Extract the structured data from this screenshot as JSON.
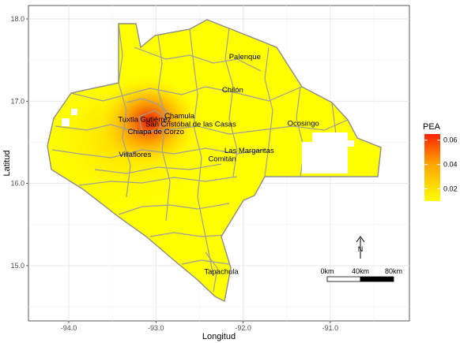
{
  "axes": {
    "xlabel": "Longitud",
    "ylabel": "Latitud",
    "xticks": [
      {
        "value": -94.0,
        "label": "-94.0"
      },
      {
        "value": -93.0,
        "label": "-93.0"
      },
      {
        "value": -92.0,
        "label": "-92.0"
      },
      {
        "value": -91.0,
        "label": "-91.0"
      }
    ],
    "yticks": [
      {
        "value": 15.0,
        "label": "15.0"
      },
      {
        "value": 16.0,
        "label": "16.0"
      },
      {
        "value": 17.0,
        "label": "17.0"
      },
      {
        "value": 18.0,
        "label": "18.0"
      }
    ],
    "xlim": [
      -94.4,
      -90.0
    ],
    "ylim": [
      14.4,
      18.1
    ],
    "grid": true
  },
  "legend": {
    "title": "PEA",
    "ticks": [
      {
        "value": 0.06,
        "label": "0.06"
      },
      {
        "value": 0.04,
        "label": "0.04"
      },
      {
        "value": 0.02,
        "label": "0.02"
      }
    ],
    "range": [
      0.01,
      0.065
    ],
    "colors": [
      "#FFFF00",
      "#FFA500",
      "#FF0000"
    ]
  },
  "cities": [
    {
      "name": "Palenque",
      "lon": -91.98,
      "lat": 17.51
    },
    {
      "name": "Chilón",
      "lon": -92.12,
      "lat": 17.11
    },
    {
      "name": "Chamula",
      "lon": -92.73,
      "lat": 16.79
    },
    {
      "name": "Tuxtla Gutiérrez",
      "lon": -93.13,
      "lat": 16.75
    },
    {
      "name": "San Cristóbal de las Casas",
      "lon": -92.6,
      "lat": 16.69
    },
    {
      "name": "Chiapa de Corzo",
      "lon": -93.0,
      "lat": 16.6
    },
    {
      "name": "Ocosingo",
      "lon": -91.31,
      "lat": 16.7
    },
    {
      "name": "Las Margaritas",
      "lon": -91.93,
      "lat": 16.37
    },
    {
      "name": "Comitán",
      "lon": -92.24,
      "lat": 16.27
    },
    {
      "name": "Villaflores",
      "lon": -93.24,
      "lat": 16.32
    },
    {
      "name": "Tapachula",
      "lon": -92.25,
      "lat": 14.9
    }
  ],
  "hotspot": {
    "lon": -93.08,
    "lat": 16.75,
    "value": 0.063
  },
  "north_arrow": {
    "label": "N"
  },
  "scale_bar": {
    "labels": [
      "0km",
      "40km",
      "80km"
    ]
  }
}
